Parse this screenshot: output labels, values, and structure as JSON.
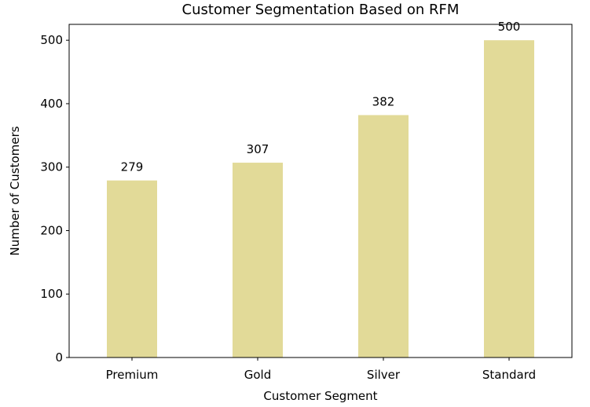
{
  "chart_data": {
    "type": "bar",
    "title": "Customer Segmentation Based on RFM",
    "xlabel": "Customer Segment",
    "ylabel": "Number of Customers",
    "categories": [
      "Premium",
      "Gold",
      "Silver",
      "Standard"
    ],
    "values": [
      279,
      307,
      382,
      500
    ],
    "ylim": [
      0,
      525
    ],
    "yticks": [
      0,
      100,
      200,
      300,
      400,
      500
    ],
    "bar_color": "#e2da98",
    "grid": false,
    "legend": false,
    "data_labels": true
  }
}
